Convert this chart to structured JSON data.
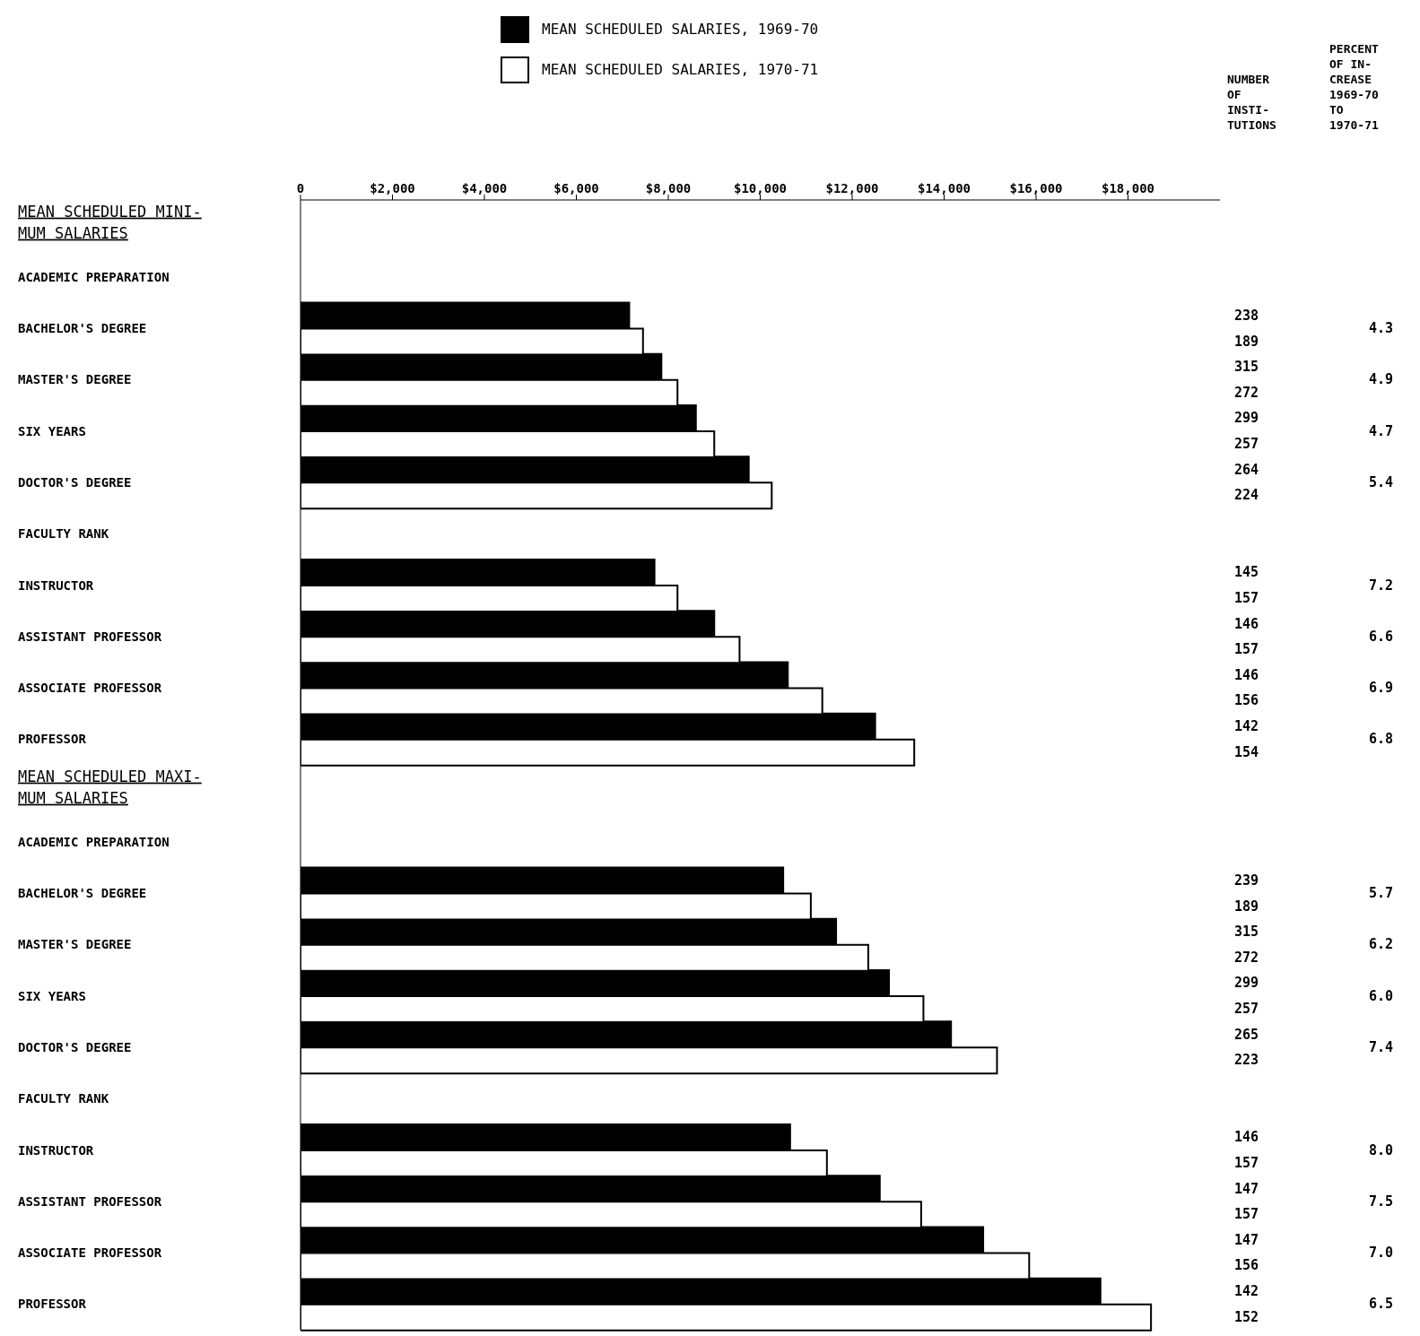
{
  "chart_data": {
    "type": "bar",
    "orientation": "horizontal",
    "legend": "top",
    "categories": [
      "MEAN SCHEDULED MINI- MUM SALARIES",
      "ACADEMIC PREPARATION",
      "BACHELOR'S DEGREE",
      "MASTER'S DEGREE",
      "SIX YEARS",
      "DOCTOR'S DEGREE",
      "FACULTY RANK",
      "INSTRUCTOR",
      "ASSISTANT PROFESSOR",
      "ASSOCIATE PROFESSOR",
      "PROFESSOR",
      "MEAN SCHEDULED MAXI- MUM SALARIES",
      "ACADEMIC PREPARATION",
      "BACHELOR'S DEGREE",
      "MASTER'S DEGREE",
      "SIX YEARS",
      "DOCTOR'S DEGREE",
      "FACULTY RANK",
      "INSTRUCTOR",
      "ASSISTANT PROFESSOR",
      "ASSOCIATE PROFESSOR",
      "PROFESSOR"
    ],
    "series": [
      {
        "name": "MEAN SCHEDULED SALARIES, 1969-70",
        "color": "#000000",
        "values": [
          null,
          null,
          7150,
          7850,
          8600,
          9750,
          null,
          7700,
          9000,
          10600,
          12500,
          null,
          null,
          10500,
          11650,
          12800,
          14150,
          null,
          10650,
          12600,
          14850,
          17400
        ]
      },
      {
        "name": "MEAN SCHEDULED SALARIES, 1970-71",
        "color": "#ffffff",
        "values": [
          null,
          null,
          7450,
          8200,
          9000,
          10250,
          null,
          8200,
          9550,
          11350,
          13350,
          null,
          null,
          11100,
          12350,
          13550,
          15150,
          null,
          11450,
          13500,
          15850,
          18500
        ]
      }
    ],
    "xlim": [
      0,
      20000
    ],
    "xticks": [
      0,
      {
        "value": 2000,
        "label": "$2,000"
      },
      {
        "value": 4000,
        "label": "$4,000"
      },
      {
        "value": 6000,
        "label": "$6,000"
      },
      {
        "value": 8000,
        "label": "$8,000"
      },
      {
        "value": 10000,
        "label": "$10,000"
      },
      {
        "value": 12000,
        "label": "$12,000"
      },
      {
        "value": 14000,
        "label": "$14,000"
      },
      {
        "value": 16000,
        "label": "$16,000"
      },
      {
        "value": 18000,
        "label": "$18,000"
      }
    ],
    "annotations": [
      "NUMBER OF INSTI- TUTIONS",
      "PERCENT OF IN- CREASE 1969-70 TO 1970-71",
      "238",
      "189",
      "4.3",
      "315",
      "272",
      "4.9",
      "299",
      "257",
      "4.7",
      "264",
      "224",
      "5.4",
      "145",
      "157",
      "7.2",
      "146",
      "157",
      "6.6",
      "146",
      "156",
      "6.9",
      "142",
      "154",
      "6.8",
      "239",
      "189",
      "5.7",
      "315",
      "272",
      "6.2",
      "299",
      "257",
      "6.0",
      "265",
      "223",
      "7.4",
      "146",
      "157",
      "8.0",
      "147",
      "157",
      "7.5",
      "147",
      "156",
      "7.0",
      "142",
      "152",
      "6.5"
    ]
  }
}
